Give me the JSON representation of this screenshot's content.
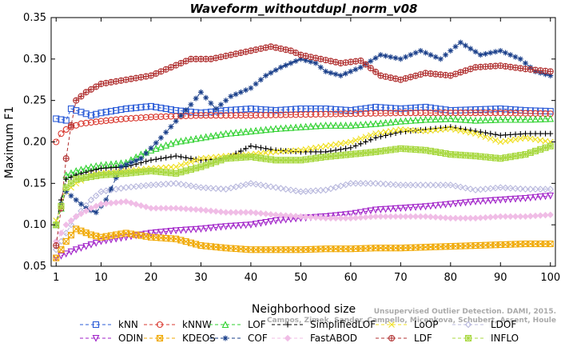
{
  "chart_data": {
    "type": "line",
    "title": "Waveform_withoutdupl_norm_v08",
    "xlabel": "Neighborhood size",
    "ylabel": "Maximum F1",
    "xlim": [
      0,
      101
    ],
    "ylim": [
      0.05,
      0.35
    ],
    "xticks": [
      1,
      10,
      20,
      30,
      40,
      50,
      60,
      70,
      80,
      90,
      100
    ],
    "yticks": [
      0.05,
      0.1,
      0.15,
      0.2,
      0.25,
      0.3,
      0.35
    ],
    "ytick_labels": [
      "0.05",
      "0.10",
      "0.15",
      "0.20",
      "0.25",
      "0.30",
      "0.35"
    ],
    "grid": false,
    "legend_position": "bottom",
    "series": [
      {
        "name": "kNN",
        "color": "#2a5bd7",
        "marker": "square",
        "dash": "4,3",
        "points": [
          [
            1,
            0.228
          ],
          [
            3,
            0.226
          ],
          [
            4,
            0.24
          ],
          [
            5,
            0.238
          ],
          [
            8,
            0.232
          ],
          [
            10,
            0.235
          ],
          [
            15,
            0.24
          ],
          [
            20,
            0.243
          ],
          [
            25,
            0.238
          ],
          [
            30,
            0.235
          ],
          [
            35,
            0.238
          ],
          [
            40,
            0.24
          ],
          [
            45,
            0.238
          ],
          [
            50,
            0.24
          ],
          [
            55,
            0.24
          ],
          [
            60,
            0.238
          ],
          [
            65,
            0.242
          ],
          [
            70,
            0.24
          ],
          [
            75,
            0.242
          ],
          [
            80,
            0.238
          ],
          [
            85,
            0.239
          ],
          [
            90,
            0.24
          ],
          [
            95,
            0.238
          ],
          [
            100,
            0.237
          ]
        ]
      },
      {
        "name": "kNNW",
        "color": "#d9382f",
        "marker": "circle",
        "dash": "4,3",
        "points": [
          [
            1,
            0.2
          ],
          [
            2,
            0.21
          ],
          [
            3,
            0.215
          ],
          [
            4,
            0.218
          ],
          [
            6,
            0.222
          ],
          [
            10,
            0.225
          ],
          [
            15,
            0.228
          ],
          [
            20,
            0.23
          ],
          [
            25,
            0.231
          ],
          [
            30,
            0.232
          ],
          [
            40,
            0.232
          ],
          [
            50,
            0.233
          ],
          [
            60,
            0.234
          ],
          [
            70,
            0.235
          ],
          [
            80,
            0.235
          ],
          [
            90,
            0.235
          ],
          [
            100,
            0.234
          ]
        ]
      },
      {
        "name": "LOF",
        "color": "#2ed12e",
        "marker": "triangle-up",
        "dash": "4,3",
        "points": [
          [
            1,
            0.1
          ],
          [
            2,
            0.12
          ],
          [
            3,
            0.16
          ],
          [
            5,
            0.165
          ],
          [
            8,
            0.17
          ],
          [
            10,
            0.172
          ],
          [
            15,
            0.175
          ],
          [
            18,
            0.185
          ],
          [
            20,
            0.19
          ],
          [
            25,
            0.2
          ],
          [
            30,
            0.205
          ],
          [
            35,
            0.21
          ],
          [
            40,
            0.213
          ],
          [
            45,
            0.216
          ],
          [
            50,
            0.218
          ],
          [
            55,
            0.22
          ],
          [
            60,
            0.22
          ],
          [
            65,
            0.222
          ],
          [
            70,
            0.225
          ],
          [
            75,
            0.227
          ],
          [
            80,
            0.228
          ],
          [
            85,
            0.226
          ],
          [
            90,
            0.227
          ],
          [
            95,
            0.227
          ],
          [
            100,
            0.228
          ]
        ]
      },
      {
        "name": "SimplifiedLOF",
        "color": "#000000",
        "marker": "plus",
        "dash": "4,3",
        "points": [
          [
            1,
            0.1
          ],
          [
            2,
            0.13
          ],
          [
            3,
            0.155
          ],
          [
            5,
            0.16
          ],
          [
            8,
            0.165
          ],
          [
            10,
            0.168
          ],
          [
            15,
            0.17
          ],
          [
            20,
            0.178
          ],
          [
            25,
            0.183
          ],
          [
            30,
            0.178
          ],
          [
            35,
            0.18
          ],
          [
            40,
            0.195
          ],
          [
            45,
            0.19
          ],
          [
            50,
            0.188
          ],
          [
            55,
            0.188
          ],
          [
            60,
            0.193
          ],
          [
            65,
            0.205
          ],
          [
            70,
            0.212
          ],
          [
            75,
            0.215
          ],
          [
            80,
            0.218
          ],
          [
            85,
            0.213
          ],
          [
            90,
            0.208
          ],
          [
            95,
            0.21
          ],
          [
            100,
            0.21
          ]
        ]
      },
      {
        "name": "LoOP",
        "color": "#f0e020",
        "marker": "x",
        "dash": "4,3",
        "points": [
          [
            1,
            0.105
          ],
          [
            3,
            0.14
          ],
          [
            5,
            0.15
          ],
          [
            8,
            0.16
          ],
          [
            10,
            0.162
          ],
          [
            15,
            0.165
          ],
          [
            20,
            0.168
          ],
          [
            25,
            0.17
          ],
          [
            30,
            0.18
          ],
          [
            35,
            0.183
          ],
          [
            40,
            0.185
          ],
          [
            45,
            0.188
          ],
          [
            50,
            0.19
          ],
          [
            55,
            0.195
          ],
          [
            60,
            0.2
          ],
          [
            65,
            0.21
          ],
          [
            70,
            0.215
          ],
          [
            75,
            0.213
          ],
          [
            80,
            0.216
          ],
          [
            85,
            0.21
          ],
          [
            90,
            0.2
          ],
          [
            95,
            0.205
          ],
          [
            100,
            0.2
          ]
        ]
      },
      {
        "name": "LDOF",
        "color": "#b8b8dd",
        "marker": "diamond",
        "dash": "4,3",
        "points": [
          [
            1,
            0.07
          ],
          [
            3,
            0.09
          ],
          [
            5,
            0.11
          ],
          [
            8,
            0.13
          ],
          [
            10,
            0.14
          ],
          [
            15,
            0.145
          ],
          [
            20,
            0.148
          ],
          [
            25,
            0.15
          ],
          [
            30,
            0.145
          ],
          [
            35,
            0.143
          ],
          [
            40,
            0.15
          ],
          [
            45,
            0.145
          ],
          [
            50,
            0.14
          ],
          [
            55,
            0.142
          ],
          [
            60,
            0.15
          ],
          [
            65,
            0.15
          ],
          [
            70,
            0.148
          ],
          [
            75,
            0.148
          ],
          [
            80,
            0.148
          ],
          [
            85,
            0.142
          ],
          [
            90,
            0.145
          ],
          [
            95,
            0.143
          ],
          [
            100,
            0.143
          ]
        ]
      },
      {
        "name": "ODIN",
        "color": "#a020c8",
        "marker": "triangle-down",
        "dash": "4,3",
        "points": [
          [
            1,
            0.06
          ],
          [
            3,
            0.065
          ],
          [
            5,
            0.07
          ],
          [
            10,
            0.08
          ],
          [
            15,
            0.085
          ],
          [
            20,
            0.09
          ],
          [
            25,
            0.093
          ],
          [
            30,
            0.095
          ],
          [
            35,
            0.098
          ],
          [
            40,
            0.1
          ],
          [
            45,
            0.105
          ],
          [
            50,
            0.108
          ],
          [
            55,
            0.11
          ],
          [
            60,
            0.113
          ],
          [
            65,
            0.118
          ],
          [
            70,
            0.12
          ],
          [
            75,
            0.122
          ],
          [
            80,
            0.125
          ],
          [
            85,
            0.128
          ],
          [
            90,
            0.13
          ],
          [
            95,
            0.132
          ],
          [
            100,
            0.135
          ]
        ]
      },
      {
        "name": "KDEOS",
        "color": "#f0a800",
        "marker": "square-x",
        "dash": "4,3",
        "points": [
          [
            1,
            0.06
          ],
          [
            3,
            0.08
          ],
          [
            5,
            0.095
          ],
          [
            8,
            0.088
          ],
          [
            10,
            0.085
          ],
          [
            15,
            0.09
          ],
          [
            20,
            0.085
          ],
          [
            25,
            0.083
          ],
          [
            30,
            0.075
          ],
          [
            35,
            0.072
          ],
          [
            40,
            0.07
          ],
          [
            45,
            0.07
          ],
          [
            50,
            0.07
          ],
          [
            55,
            0.071
          ],
          [
            60,
            0.071
          ],
          [
            65,
            0.072
          ],
          [
            70,
            0.072
          ],
          [
            75,
            0.073
          ],
          [
            80,
            0.074
          ],
          [
            85,
            0.075
          ],
          [
            90,
            0.076
          ],
          [
            95,
            0.077
          ],
          [
            100,
            0.077
          ]
        ]
      },
      {
        "name": "COF",
        "color": "#1a3f8a",
        "marker": "star",
        "dash": "4,3",
        "points": [
          [
            1,
            0.1
          ],
          [
            2,
            0.125
          ],
          [
            3,
            0.14
          ],
          [
            5,
            0.13
          ],
          [
            7,
            0.12
          ],
          [
            9,
            0.115
          ],
          [
            11,
            0.13
          ],
          [
            14,
            0.17
          ],
          [
            18,
            0.18
          ],
          [
            22,
            0.205
          ],
          [
            25,
            0.225
          ],
          [
            28,
            0.245
          ],
          [
            30,
            0.26
          ],
          [
            33,
            0.24
          ],
          [
            36,
            0.255
          ],
          [
            40,
            0.265
          ],
          [
            43,
            0.28
          ],
          [
            46,
            0.29
          ],
          [
            50,
            0.3
          ],
          [
            53,
            0.295
          ],
          [
            55,
            0.285
          ],
          [
            58,
            0.28
          ],
          [
            62,
            0.29
          ],
          [
            66,
            0.305
          ],
          [
            70,
            0.3
          ],
          [
            74,
            0.31
          ],
          [
            78,
            0.3
          ],
          [
            82,
            0.32
          ],
          [
            86,
            0.305
          ],
          [
            90,
            0.31
          ],
          [
            94,
            0.3
          ],
          [
            97,
            0.285
          ],
          [
            100,
            0.28
          ]
        ]
      },
      {
        "name": "FastABOD",
        "color": "#f0bde6",
        "marker": "diamond-filled",
        "dash": "4,3",
        "points": [
          [
            1,
            0.08
          ],
          [
            3,
            0.1
          ],
          [
            5,
            0.11
          ],
          [
            8,
            0.12
          ],
          [
            10,
            0.125
          ],
          [
            15,
            0.128
          ],
          [
            20,
            0.12
          ],
          [
            25,
            0.12
          ],
          [
            30,
            0.118
          ],
          [
            35,
            0.115
          ],
          [
            40,
            0.115
          ],
          [
            45,
            0.112
          ],
          [
            50,
            0.11
          ],
          [
            55,
            0.108
          ],
          [
            60,
            0.108
          ],
          [
            65,
            0.11
          ],
          [
            70,
            0.11
          ],
          [
            75,
            0.11
          ],
          [
            80,
            0.108
          ],
          [
            85,
            0.108
          ],
          [
            90,
            0.11
          ],
          [
            95,
            0.11
          ],
          [
            100,
            0.112
          ]
        ]
      },
      {
        "name": "LDF",
        "color": "#b03030",
        "marker": "circle-plus",
        "dash": "4,3",
        "points": [
          [
            1,
            0.075
          ],
          [
            2,
            0.12
          ],
          [
            3,
            0.18
          ],
          [
            4,
            0.22
          ],
          [
            5,
            0.25
          ],
          [
            7,
            0.26
          ],
          [
            10,
            0.27
          ],
          [
            15,
            0.275
          ],
          [
            20,
            0.28
          ],
          [
            24,
            0.29
          ],
          [
            28,
            0.3
          ],
          [
            32,
            0.3
          ],
          [
            36,
            0.305
          ],
          [
            40,
            0.31
          ],
          [
            44,
            0.315
          ],
          [
            48,
            0.31
          ],
          [
            50,
            0.305
          ],
          [
            54,
            0.3
          ],
          [
            58,
            0.295
          ],
          [
            62,
            0.298
          ],
          [
            66,
            0.28
          ],
          [
            70,
            0.275
          ],
          [
            75,
            0.283
          ],
          [
            80,
            0.28
          ],
          [
            85,
            0.29
          ],
          [
            90,
            0.292
          ],
          [
            95,
            0.288
          ],
          [
            100,
            0.285
          ]
        ]
      },
      {
        "name": "INFLO",
        "color": "#a8d840",
        "marker": "square-star",
        "dash": "4,3",
        "points": [
          [
            1,
            0.1
          ],
          [
            3,
            0.145
          ],
          [
            5,
            0.155
          ],
          [
            8,
            0.158
          ],
          [
            10,
            0.16
          ],
          [
            15,
            0.162
          ],
          [
            20,
            0.165
          ],
          [
            25,
            0.162
          ],
          [
            30,
            0.17
          ],
          [
            35,
            0.18
          ],
          [
            40,
            0.182
          ],
          [
            45,
            0.178
          ],
          [
            50,
            0.178
          ],
          [
            55,
            0.182
          ],
          [
            60,
            0.185
          ],
          [
            65,
            0.188
          ],
          [
            70,
            0.192
          ],
          [
            75,
            0.19
          ],
          [
            80,
            0.185
          ],
          [
            85,
            0.183
          ],
          [
            90,
            0.18
          ],
          [
            95,
            0.185
          ],
          [
            100,
            0.195
          ]
        ]
      }
    ]
  },
  "legend_order": [
    "kNN",
    "kNNW",
    "LOF",
    "SimplifiedLOF",
    "LoOP",
    "LDOF",
    "ODIN",
    "KDEOS",
    "COF",
    "FastABOD",
    "LDF",
    "INFLO"
  ],
  "credit": {
    "line1": "Unsupervised Outlier Detection. DAMI, 2015.",
    "line2": "Campos, Zimek, Sander, Campello, Micenkova, Schubert, Assent, Houle"
  }
}
